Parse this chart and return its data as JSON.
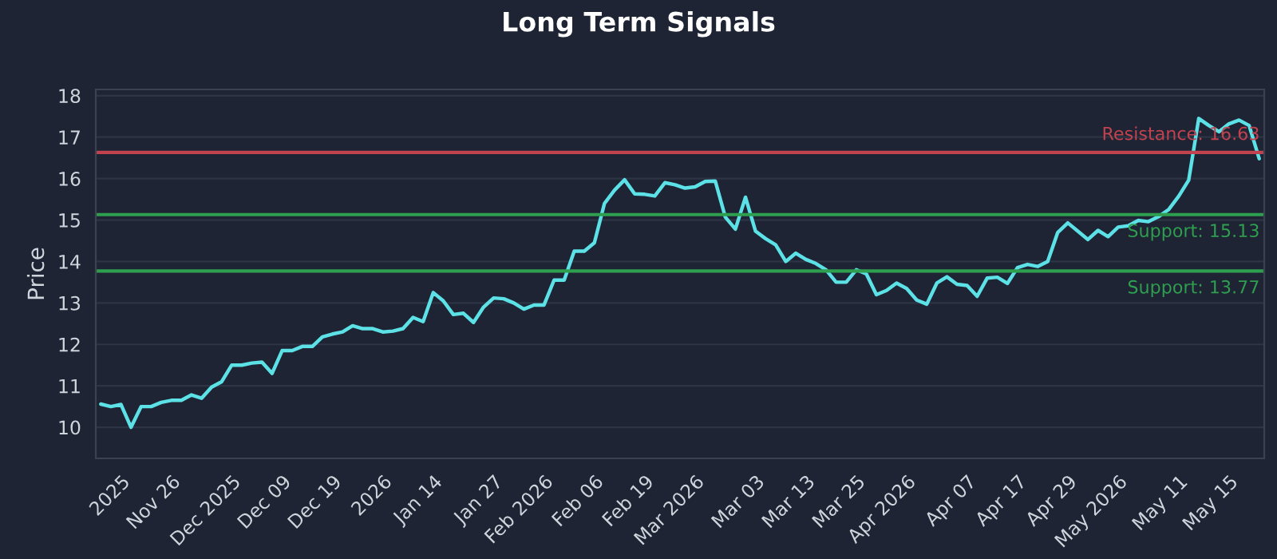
{
  "chart_data": {
    "type": "line",
    "title": "Long Term Signals",
    "ylabel": "Price",
    "categories": [
      null,
      null,
      "2025",
      null,
      null,
      null,
      null,
      "Nov 26",
      null,
      null,
      null,
      null,
      null,
      "Dec 2025",
      null,
      null,
      null,
      null,
      "Dec 09",
      null,
      null,
      null,
      null,
      "Dec 19",
      null,
      null,
      null,
      null,
      "2026",
      null,
      null,
      null,
      null,
      "Jan 14",
      null,
      null,
      null,
      null,
      null,
      "Jan 27",
      null,
      null,
      null,
      null,
      "Feb 2026",
      null,
      null,
      null,
      null,
      "Feb 06",
      null,
      null,
      null,
      null,
      "Feb 19",
      null,
      null,
      null,
      null,
      "Mar 2026",
      null,
      null,
      null,
      null,
      null,
      "Mar 03",
      null,
      null,
      null,
      null,
      "Mar 13",
      null,
      null,
      null,
      null,
      "Mar 25",
      null,
      null,
      null,
      null,
      "Apr 2026",
      null,
      null,
      null,
      null,
      null,
      "Apr 07",
      null,
      null,
      null,
      null,
      "Apr 17",
      null,
      null,
      null,
      null,
      "Apr 29",
      null,
      null,
      null,
      null,
      "May 2026",
      null,
      null,
      null,
      null,
      null,
      "May 11",
      null,
      null,
      null,
      null,
      "May 15",
      null,
      null,
      null
    ],
    "series": [
      {
        "color": "#5ce1e6",
        "values": [
          10.56,
          10.5,
          10.55,
          10.0,
          10.5,
          10.5,
          10.6,
          10.65,
          10.65,
          10.78,
          10.7,
          10.97,
          11.1,
          11.5,
          11.5,
          11.55,
          11.57,
          11.3,
          11.85,
          11.85,
          11.95,
          11.95,
          12.18,
          12.25,
          12.3,
          12.45,
          12.38,
          12.38,
          12.3,
          12.32,
          12.38,
          12.65,
          12.55,
          13.25,
          13.05,
          12.72,
          12.75,
          12.53,
          12.9,
          13.12,
          13.1,
          13.0,
          12.85,
          12.95,
          12.95,
          13.55,
          13.55,
          14.25,
          14.25,
          14.45,
          15.4,
          15.72,
          15.97,
          15.63,
          15.62,
          15.58,
          15.9,
          15.85,
          15.77,
          15.8,
          15.93,
          15.94,
          15.07,
          14.78,
          15.55,
          14.73,
          14.55,
          14.4,
          14.0,
          14.2,
          14.05,
          13.95,
          13.8,
          13.5,
          13.5,
          13.8,
          13.7,
          13.2,
          13.3,
          13.48,
          13.35,
          13.07,
          12.97,
          13.48,
          13.63,
          13.45,
          13.42,
          13.16,
          13.6,
          13.62,
          13.47,
          13.85,
          13.93,
          13.88,
          14.0,
          14.7,
          14.93,
          14.73,
          14.53,
          14.75,
          14.6,
          14.83,
          14.86,
          14.99,
          14.96,
          15.08,
          15.25,
          15.57,
          15.96,
          17.45,
          17.28,
          17.13,
          17.32,
          17.41,
          17.28,
          16.48
        ]
      }
    ],
    "ylim": [
      9.25,
      18.15
    ],
    "yticks": [
      10,
      11,
      12,
      13,
      14,
      15,
      16,
      17,
      18
    ],
    "grid": "y",
    "marker": "none",
    "line_style": "solid",
    "ref_lines": [
      {
        "axis": "y",
        "value": 16.63,
        "label": "Resistance: 16.63",
        "color": "#c0434f"
      },
      {
        "axis": "y",
        "value": 15.13,
        "label": "Support: 15.13",
        "color": "#2e9e4f"
      },
      {
        "axis": "y",
        "value": 13.77,
        "label": "Support: 13.77",
        "color": "#2e9e4f"
      }
    ]
  }
}
